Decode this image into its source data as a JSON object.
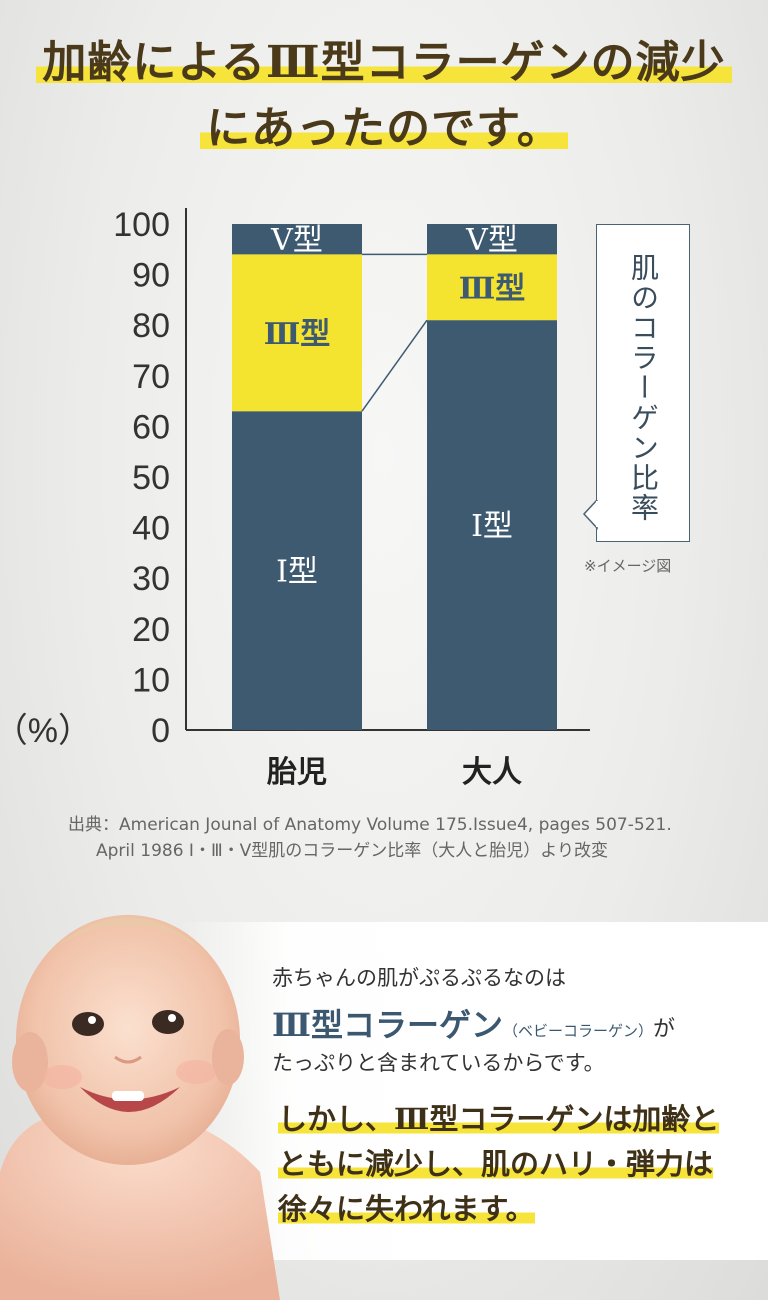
{
  "headline": {
    "line1": "加齢によるⅢ型コラーゲンの減少",
    "line2": "にあったのです。"
  },
  "chart_data": {
    "type": "bar",
    "stacked": true,
    "categories": [
      "胎児",
      "大人"
    ],
    "series": [
      {
        "name": "Ⅰ型",
        "values": [
          63,
          81
        ],
        "color": "#3d5a70"
      },
      {
        "name": "Ⅲ型",
        "values": [
          31,
          13
        ],
        "color": "#f4e430"
      },
      {
        "name": "Ⅴ型",
        "values": [
          6,
          6
        ],
        "color": "#3d5a70"
      }
    ],
    "segment_labels": {
      "Ⅰ型": "Ⅰ型",
      "Ⅲ型": "Ⅲ型",
      "Ⅴ型": "V型"
    },
    "ylim": [
      0,
      100
    ],
    "yticks": [
      0,
      10,
      20,
      30,
      40,
      50,
      60,
      70,
      80,
      90,
      100
    ],
    "yunit_label": "（%）",
    "callout": "肌のコラーゲン比率",
    "note": "※イメージ図"
  },
  "source": {
    "line1": "出典：American Jounal of Anatomy Volume 175.Issue4, pages 507-521.",
    "line2": "April 1986 Ⅰ・Ⅲ・Ⅴ型肌のコラーゲン比率（大人と胎児）より改変"
  },
  "body": {
    "p1": "赤ちゃんの肌がぷるぷるなのは",
    "p2_main": "Ⅲ型コラーゲン",
    "p2_small": "（ベビーコラーゲン）",
    "p2_tail": "が",
    "p3": "たっぷりと含まれているからです。",
    "e1": "しかし、Ⅲ型コラーゲンは加齢と",
    "e2": "ともに減少し、肌のハリ・弾力は",
    "e3": "徐々に失われます。"
  },
  "colors": {
    "navy": "#3d5a70",
    "yellow": "#f4e430",
    "headline": "#4a3a1a"
  }
}
